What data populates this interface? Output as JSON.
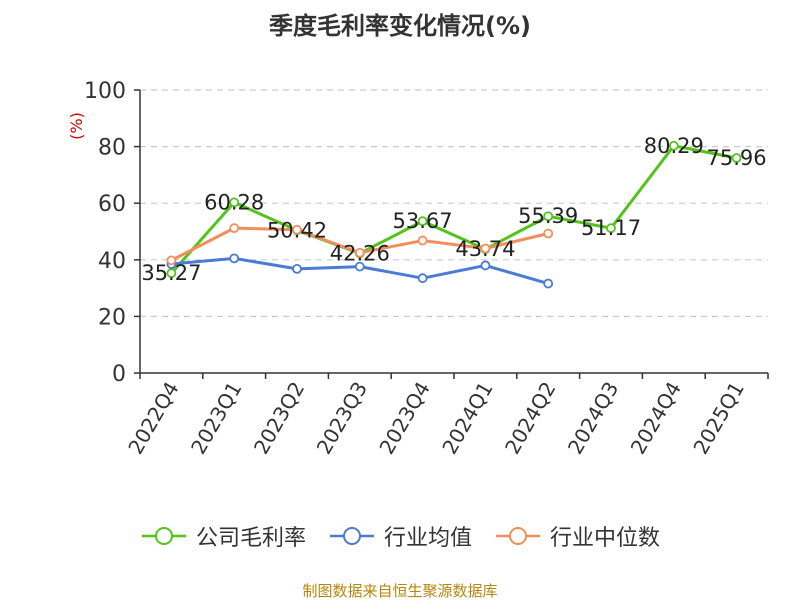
{
  "chart_data": {
    "type": "line",
    "title": "季度毛利率变化情况(%)",
    "ylabel": "(%)",
    "ylim": [
      0,
      100
    ],
    "yticks": [
      0,
      20,
      40,
      60,
      80,
      100
    ],
    "grid": true,
    "legend_position": "bottom",
    "categories": [
      "2022Q4",
      "2023Q1",
      "2023Q2",
      "2023Q3",
      "2023Q4",
      "2024Q1",
      "2024Q2",
      "2024Q3",
      "2024Q4",
      "2025Q1"
    ],
    "series": [
      {
        "name": "公司毛利率",
        "color": "#52c41a",
        "labeled": true,
        "values": [
          35.27,
          60.28,
          50.42,
          42.26,
          53.67,
          43.74,
          55.39,
          51.17,
          80.29,
          75.96
        ]
      },
      {
        "name": "行业均值",
        "color": "#4b7bd5",
        "labeled": false,
        "values": [
          38.5,
          40.5,
          36.8,
          37.6,
          33.5,
          38.0,
          31.6,
          null,
          null,
          null
        ]
      },
      {
        "name": "行业中位数",
        "color": "#f28e5b",
        "labeled": false,
        "values": [
          39.8,
          51.2,
          50.6,
          42.5,
          46.8,
          44.0,
          49.3,
          null,
          null,
          null
        ]
      }
    ]
  },
  "source": "制图数据来自恒生聚源数据库"
}
